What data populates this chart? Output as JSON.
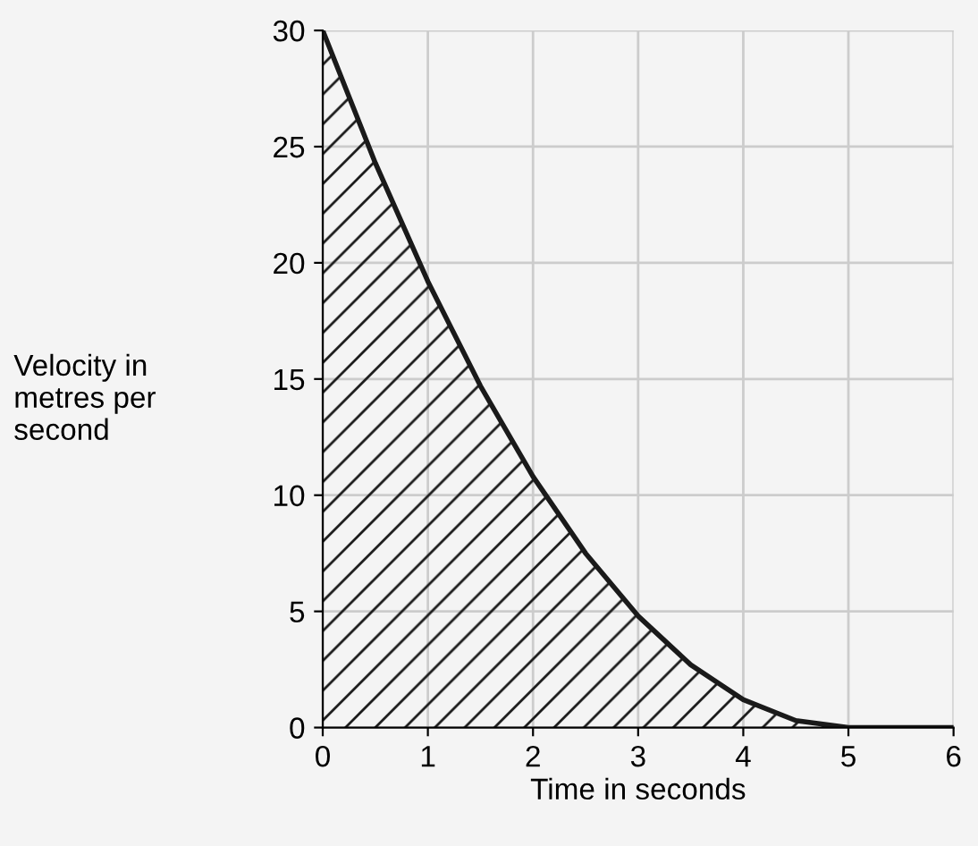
{
  "chart_data": {
    "type": "area",
    "xlabel": "Time in seconds",
    "ylabel": "Velocity in\nmetres per\nsecond",
    "x": [
      0,
      0.5,
      1,
      1.5,
      2,
      2.5,
      3,
      3.5,
      4,
      4.5,
      5,
      6
    ],
    "series": [
      {
        "color": "#1a1a1a",
        "values": [
          30,
          24.3,
          19.2,
          14.7,
          10.8,
          7.5,
          4.8,
          2.7,
          1.2,
          0.3,
          0,
          0
        ]
      }
    ],
    "xlim": [
      0,
      6
    ],
    "ylim": [
      0,
      30
    ],
    "xticks": [
      0,
      1,
      2,
      3,
      4,
      5,
      6
    ],
    "yticks": [
      0,
      5,
      10,
      15,
      20,
      25,
      30
    ],
    "grid": true
  }
}
